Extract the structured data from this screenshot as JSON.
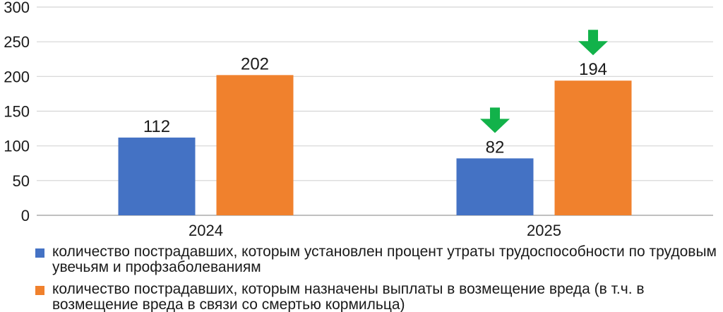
{
  "chart_data": {
    "type": "bar",
    "title": "",
    "xlabel": "",
    "ylabel": "",
    "categories": [
      "2024",
      "2025"
    ],
    "ylim": [
      0,
      300
    ],
    "yticks": [
      "0",
      "50",
      "100",
      "150",
      "200",
      "250",
      "300"
    ],
    "grid": true,
    "legend_position": "bottom",
    "series": [
      {
        "name": "количество пострадавших, которым установлен процент утраты трудоспособности по трудовым увечьям и профзаболеваниям",
        "values": [
          112,
          82
        ],
        "labels": [
          "112",
          "82"
        ],
        "color": "#4472c4"
      },
      {
        "name": "количество пострадавших, которым назначены выплаты в возмещение вреда (в т.ч. в возмещение вреда в связи со смертью кормильца)",
        "values": [
          202,
          194
        ],
        "labels": [
          "202",
          "194"
        ],
        "color": "#f0812d"
      }
    ],
    "annotations": [
      {
        "icon": "down-arrow-icon",
        "series": 0,
        "category": "2025",
        "color": "#12b24a"
      },
      {
        "icon": "down-arrow-icon",
        "series": 1,
        "category": "2025",
        "color": "#12b24a"
      }
    ]
  }
}
